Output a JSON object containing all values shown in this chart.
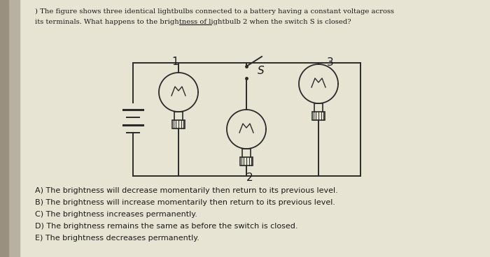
{
  "bg_color": "#e8e4d4",
  "paper_color": "#f2efe3",
  "left_bar_color": "#b8b0a0",
  "text_color": "#1a1a1a",
  "circuit_color": "#2a2a2a",
  "title_line1": ") The figure shows three identical lightbulbs connected to a battery having a constant voltage across",
  "title_line2_pre": "its terminals. What happens to the brightness of ",
  "title_line2_ul": "lightbulb 2",
  "title_line2_post": " when the switch S is closed?",
  "options": [
    "A) The brightness will decrease momentarily then return to its previous level.",
    "B) The brightness will increase momentarily then return to its previous level.",
    "C) The brightness increases permanently.",
    "D) The brightness remains the same as before the switch is closed.",
    "E) The brightness decreases permanently."
  ],
  "figsize": [
    7.0,
    3.68
  ],
  "dpi": 100
}
